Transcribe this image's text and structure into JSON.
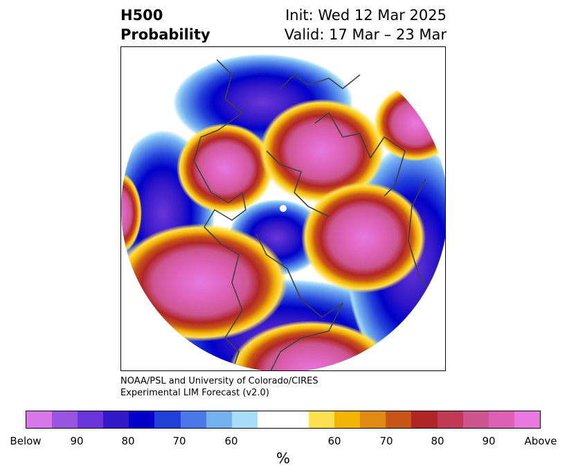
{
  "header": {
    "title_line1": "H500",
    "title_line2": "Probability",
    "init": "Init: Wed 12 Mar 2025",
    "valid": "Valid: 17 Mar – 23 Mar"
  },
  "credit": {
    "line1": "NOAA/PSL and University of Colorado/CIRES",
    "line2": "Experimental LIM Forecast (v2.0)"
  },
  "colorbar": {
    "unit": "%",
    "colors": [
      "#d878e8",
      "#9a55e0",
      "#6a35d8",
      "#3318c8",
      "#0000c8",
      "#2240d8",
      "#4a78e6",
      "#74b0f0",
      "#a8dcfa",
      "#ffffff",
      "#ffffff",
      "#ffe050",
      "#f2b505",
      "#df8a10",
      "#c85518",
      "#b02525",
      "#c03a55",
      "#cc5590",
      "#dd60b5",
      "#e878e0"
    ],
    "ticks": [
      "Below",
      "90",
      "80",
      "70",
      "60",
      "60",
      "70",
      "80",
      "90",
      "Above"
    ]
  },
  "map": {
    "projection": "north-polar-stereographic",
    "colors": {
      "above_core": "#e878e0",
      "above_inner": "#cc5590",
      "above_mid": "#b02525",
      "above_outer": "#df8a10",
      "above_edge": "#ffe050",
      "below_core": "#6a35d8",
      "below_inner": "#0000c8",
      "below_mid": "#4a78e6",
      "below_outer": "#74b0f0",
      "below_edge": "#a8dcfa",
      "coastline": "#404040"
    }
  }
}
